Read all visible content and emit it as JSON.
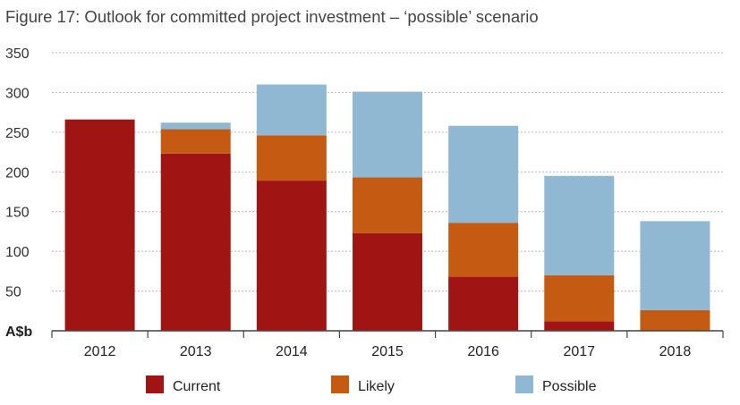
{
  "chart_data": {
    "type": "bar",
    "stacked": true,
    "title": "Figure 17: Outlook for committed project investment – ‘possible’ scenario",
    "ylabel": "A$b",
    "xlabel": "",
    "ylim": [
      0,
      350
    ],
    "yticks": [
      50,
      100,
      150,
      200,
      250,
      300,
      350
    ],
    "grid": true,
    "legend_position": "bottom",
    "categories": [
      "2012",
      "2013",
      "2014",
      "2015",
      "2016",
      "2017",
      "2018"
    ],
    "series": [
      {
        "name": "Current",
        "color": "#a01414",
        "values": [
          266,
          223,
          189,
          123,
          68,
          12,
          0
        ]
      },
      {
        "name": "Likely",
        "color": "#c55a13",
        "values": [
          0,
          31,
          57,
          70,
          68,
          58,
          26
        ]
      },
      {
        "name": "Possible",
        "color": "#91b8d3",
        "values": [
          0,
          8,
          64,
          108,
          122,
          125,
          112
        ]
      }
    ]
  }
}
